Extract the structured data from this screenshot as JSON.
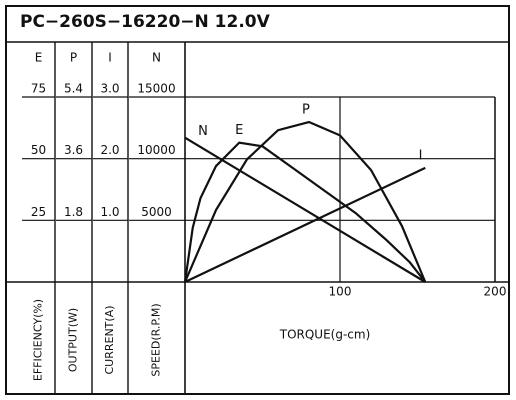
{
  "chart_data": {
    "type": "line",
    "title": "PC−260S−16220−N   12.0V",
    "x_label": "TORQUE(g-cm)",
    "xlim": [
      0,
      200
    ],
    "xticks": [
      100,
      200
    ],
    "grid": true,
    "axes": [
      {
        "header": "E",
        "label": "EFFICIENCY(%)",
        "ylim": [
          0,
          75
        ],
        "yticks": [
          25,
          50,
          75
        ]
      },
      {
        "header": "P",
        "label": "OUTPUT(W)",
        "ylim": [
          0,
          5.4
        ],
        "yticks": [
          1.8,
          3.6,
          5.4
        ]
      },
      {
        "header": "I",
        "label": "CURRENT(A)",
        "ylim": [
          0,
          3
        ],
        "yticks": [
          {
            "value": 1,
            "label": "1.0"
          },
          {
            "value": 2,
            "label": "2.0"
          },
          {
            "value": 3,
            "label": "3.0"
          }
        ]
      },
      {
        "header": "N",
        "label": "SPEED(R.P.M)",
        "ylim": [
          0,
          15000
        ],
        "yticks": [
          5000,
          10000,
          15000
        ]
      }
    ],
    "series": [
      {
        "name": "N",
        "axis": 3,
        "color": "#111111",
        "x": [
          0,
          155
        ],
        "values": [
          11700,
          0
        ]
      },
      {
        "name": "E",
        "axis": 0,
        "color": "#111111",
        "x": [
          0,
          5,
          10,
          20,
          35,
          50,
          70,
          90,
          110,
          130,
          145,
          155
        ],
        "values": [
          0,
          22,
          34,
          47,
          56.5,
          55,
          46,
          37,
          28,
          17,
          8,
          0
        ]
      },
      {
        "name": "P",
        "axis": 1,
        "color": "#111111",
        "x": [
          0,
          20,
          40,
          60,
          80,
          100,
          120,
          140,
          155
        ],
        "values": [
          0,
          2.1,
          3.58,
          4.43,
          4.67,
          4.28,
          3.27,
          1.63,
          0
        ]
      },
      {
        "name": "I",
        "axis": 2,
        "color": "#111111",
        "x": [
          0,
          155
        ],
        "values": [
          0,
          1.85
        ]
      }
    ]
  }
}
